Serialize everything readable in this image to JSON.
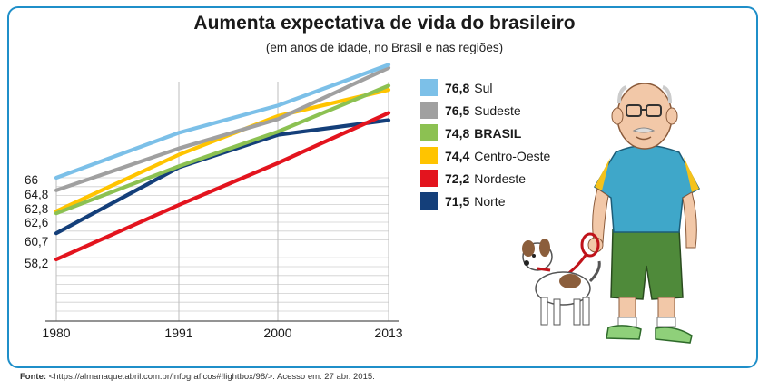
{
  "title": "Aumenta expectativa de vida do brasileiro",
  "subtitle": "(em anos de idade, no Brasil e nas regiões)",
  "chart_data": {
    "type": "line",
    "title": "Aumenta expectativa de vida do brasileiro",
    "subtitle": "(em anos de idade, no Brasil e nas regiões)",
    "x": [
      "1980",
      "1991",
      "2000",
      "2013"
    ],
    "y_tick_labels": [
      "66",
      "64,8",
      "62,8",
      "62,6",
      "60,7",
      "58,2"
    ],
    "grid": true,
    "legend_placement": "right",
    "series": [
      {
        "name": "Sul",
        "legend_value": "76,8",
        "color": "#7cc0e8",
        "values": [
          66.0,
          70.3,
          72.9,
          76.8
        ]
      },
      {
        "name": "Sudeste",
        "legend_value": "76,5",
        "color": "#a0a0a0",
        "values": [
          64.8,
          68.8,
          71.6,
          76.5
        ]
      },
      {
        "name": "BRASIL",
        "legend_value": "74,8",
        "color": "#8cc152",
        "values": [
          62.6,
          67.1,
          70.4,
          74.8
        ]
      },
      {
        "name": "Centro-Oeste",
        "legend_value": "74,4",
        "color": "#ffc400",
        "values": [
          62.8,
          68.2,
          71.9,
          74.4
        ]
      },
      {
        "name": "Nordeste",
        "legend_value": "72,2",
        "color": "#e3141e",
        "values": [
          58.2,
          63.4,
          67.4,
          72.2
        ]
      },
      {
        "name": "Norte",
        "legend_value": "71,5",
        "color": "#143f7a",
        "values": [
          60.7,
          67.0,
          70.1,
          71.5
        ]
      }
    ]
  },
  "footer": {
    "label": "Fonte:",
    "text": "<https://almanaque.abril.com.br/infograficos#!lightbox/98/>. Acesso em: 27 abr. 2015."
  }
}
